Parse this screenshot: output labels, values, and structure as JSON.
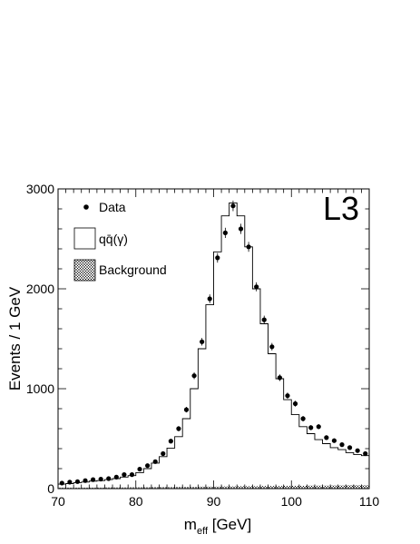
{
  "chart_data": {
    "type": "histogram+scatter",
    "experiment_label": "L3",
    "xlabel_main": "m",
    "xlabel_sub": "eff",
    "xlabel_unit": " [GeV]",
    "ylabel": "Events / 1 GeV",
    "xlim": [
      70,
      110
    ],
    "ylim": [
      0,
      3000
    ],
    "x_ticks": [
      70,
      80,
      90,
      100,
      110
    ],
    "y_ticks": [
      0,
      1000,
      2000,
      3000
    ],
    "legend": {
      "placement": "top-left",
      "entries": [
        {
          "label": "Data",
          "marker": "dot"
        },
        {
          "label": "qq̄(γ)",
          "marker": "open-box"
        },
        {
          "label": "Background",
          "marker": "hatched-box"
        }
      ]
    },
    "series": [
      {
        "name": "Data",
        "style": "points-with-errors",
        "x": [
          70.5,
          71.5,
          72.5,
          73.5,
          74.5,
          75.5,
          76.5,
          77.5,
          78.5,
          79.5,
          80.5,
          81.5,
          82.5,
          83.5,
          84.5,
          85.5,
          86.5,
          87.5,
          88.5,
          89.5,
          90.5,
          91.5,
          92.5,
          93.5,
          94.5,
          95.5,
          96.5,
          97.5,
          98.5,
          99.5,
          100.5,
          101.5,
          102.5,
          103.5,
          104.5,
          105.5,
          106.5,
          107.5,
          108.5,
          109.5
        ],
        "y": [
          55,
          65,
          70,
          80,
          90,
          95,
          100,
          115,
          140,
          140,
          195,
          230,
          270,
          350,
          475,
          600,
          790,
          1130,
          1470,
          1900,
          2310,
          2560,
          2830,
          2600,
          2420,
          2020,
          1690,
          1420,
          1110,
          930,
          850,
          700,
          610,
          620,
          510,
          480,
          440,
          410,
          380,
          350
        ],
        "err": [
          8,
          8,
          9,
          9,
          10,
          10,
          10,
          11,
          12,
          12,
          14,
          15,
          17,
          19,
          22,
          25,
          28,
          34,
          38,
          44,
          48,
          51,
          53,
          51,
          49,
          45,
          41,
          38,
          33,
          31,
          29,
          27,
          25,
          25,
          23,
          22,
          21,
          20,
          20,
          19
        ]
      },
      {
        "name": "qq̄(γ)",
        "style": "step-histogram",
        "bin_edges": [
          70,
          71,
          72,
          73,
          74,
          75,
          76,
          77,
          78,
          79,
          80,
          81,
          82,
          83,
          84,
          85,
          86,
          87,
          88,
          89,
          90,
          91,
          92,
          93,
          94,
          95,
          96,
          97,
          98,
          99,
          100,
          101,
          102,
          103,
          104,
          105,
          106,
          107,
          108,
          109,
          110
        ],
        "values": [
          45,
          50,
          60,
          65,
          75,
          80,
          90,
          100,
          115,
          130,
          160,
          200,
          255,
          320,
          405,
          520,
          700,
          1000,
          1400,
          1840,
          2370,
          2730,
          2860,
          2730,
          2420,
          2000,
          1650,
          1350,
          1100,
          890,
          740,
          620,
          550,
          490,
          450,
          410,
          390,
          360,
          340,
          330
        ]
      },
      {
        "name": "Background",
        "style": "hatched-fill",
        "bin_edges": [
          70,
          71,
          72,
          73,
          74,
          75,
          76,
          77,
          78,
          79,
          80,
          81,
          82,
          83,
          84,
          85,
          86,
          87,
          88,
          89,
          90,
          91,
          92,
          93,
          94,
          95,
          96,
          97,
          98,
          99,
          100,
          101,
          102,
          103,
          104,
          105,
          106,
          107,
          108,
          109,
          110
        ],
        "values": [
          10,
          10,
          10,
          10,
          10,
          10,
          12,
          12,
          12,
          14,
          14,
          14,
          16,
          16,
          16,
          18,
          18,
          18,
          20,
          20,
          20,
          22,
          22,
          24,
          24,
          24,
          26,
          26,
          26,
          28,
          28,
          28,
          30,
          30,
          30,
          32,
          32,
          34,
          34,
          34
        ]
      }
    ]
  }
}
